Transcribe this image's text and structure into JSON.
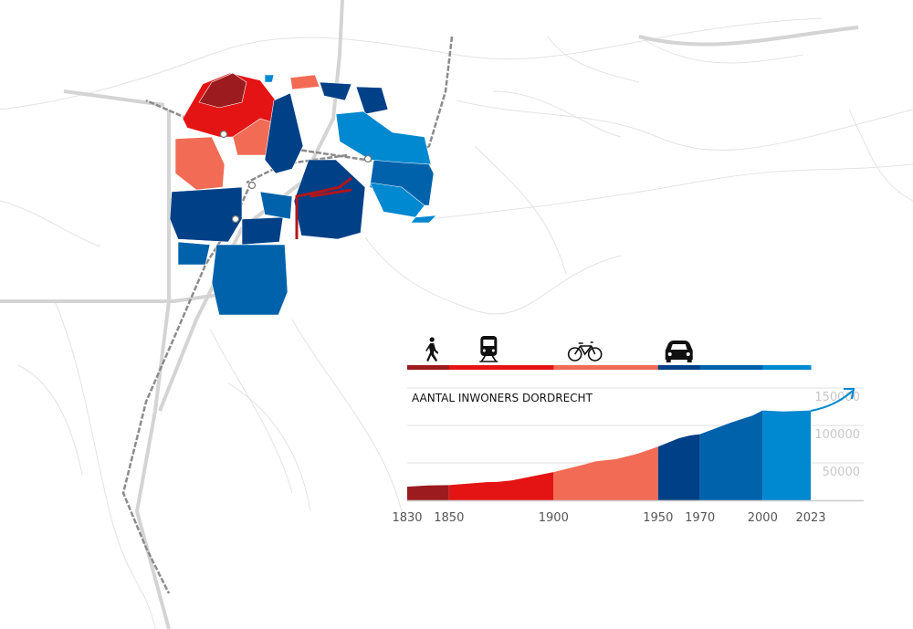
{
  "colors": {
    "period_1830_1850": "#9b1b1f",
    "period_1850_1900": "#e41414",
    "period_1900_1950": "#f26b55",
    "period_1950_1970": "#004087",
    "period_1970_2000": "#0062ab",
    "period_2000_2023": "#0088d0",
    "road": "#d6d6d6",
    "railway": "#8c8c8c"
  },
  "transport_icons": [
    {
      "icon": "walking-person-icon",
      "period_start": 1830
    },
    {
      "icon": "train-icon",
      "period_start": 1850
    },
    {
      "icon": "bicycle-icon",
      "period_start": 1900
    },
    {
      "icon": "car-icon",
      "period_start": 1950
    }
  ],
  "chart_data": {
    "type": "area",
    "title": "AANTAL INWONERS DORDRECHT",
    "xlabel": "",
    "ylabel": "",
    "x_ticks": [
      1830,
      1850,
      1900,
      1950,
      1970,
      2000,
      2023
    ],
    "y_ticks": [
      50000,
      100000,
      150000
    ],
    "xlim": [
      1830,
      2023
    ],
    "ylim": [
      0,
      150000
    ],
    "grid": "horizontal",
    "periods": [
      1830,
      1850,
      1900,
      1950,
      1970,
      2000,
      2023
    ],
    "x": [
      1830,
      1840,
      1850,
      1868,
      1873,
      1880,
      1900,
      1915,
      1920,
      1930,
      1940,
      1950,
      1960,
      1965,
      1970,
      1985,
      1995,
      2000,
      2010,
      2023
    ],
    "values": [
      18200,
      19800,
      20200,
      24300,
      24500,
      26500,
      37600,
      48000,
      52000,
      55000,
      62000,
      71700,
      83000,
      86500,
      88300,
      104000,
      113000,
      120000,
      118600,
      120000
    ],
    "trend_arrow": "up"
  }
}
